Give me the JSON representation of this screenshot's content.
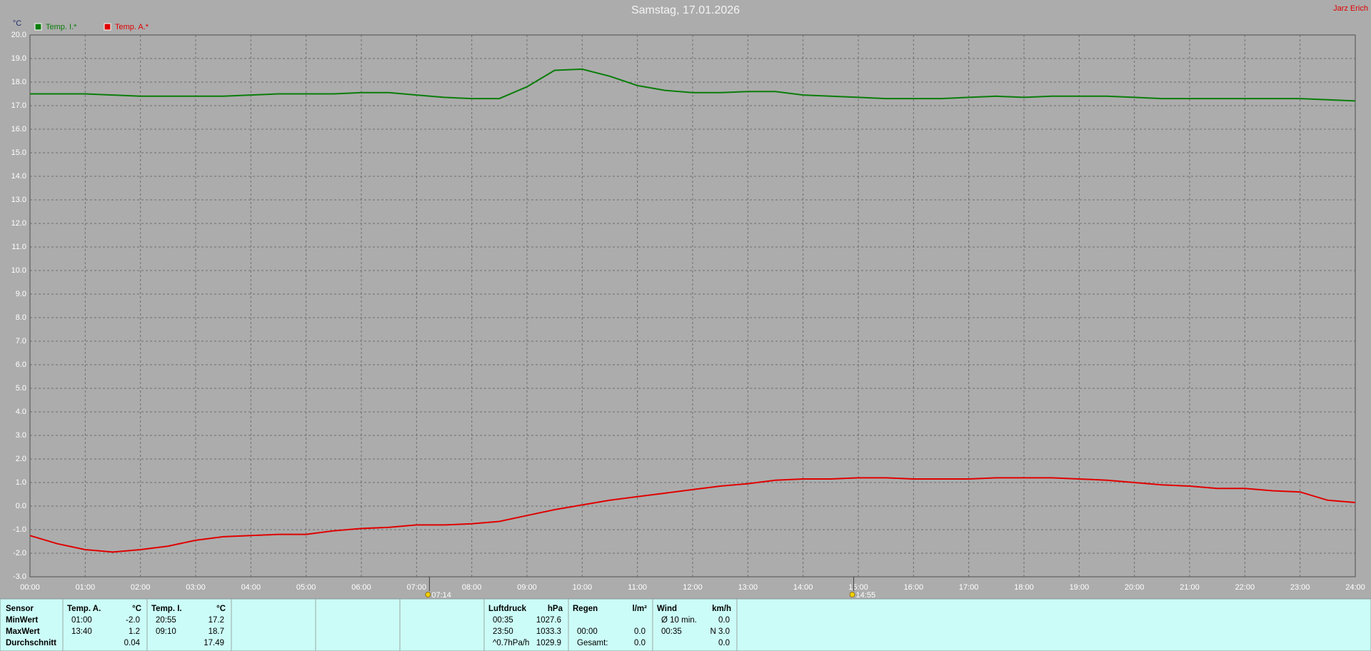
{
  "chart_data": {
    "type": "line",
    "title": "Samstag, 17.01.2026",
    "author": "Jarz Erich",
    "y_label": "°C",
    "x": [
      0,
      0.5,
      1,
      1.5,
      2,
      2.5,
      3,
      3.5,
      4,
      4.5,
      5,
      5.5,
      6,
      6.5,
      7,
      7.5,
      8,
      8.5,
      9,
      9.5,
      10,
      10.5,
      11,
      11.5,
      12,
      12.5,
      13,
      13.5,
      14,
      14.5,
      15,
      15.5,
      16,
      16.5,
      17,
      17.5,
      18,
      18.5,
      19,
      19.5,
      20,
      20.5,
      21,
      21.5,
      22,
      22.5,
      23,
      23.5,
      24
    ],
    "series": [
      {
        "name": "Temp. I.*",
        "color": "#0a7d0a",
        "values": [
          17.5,
          17.5,
          17.5,
          17.45,
          17.4,
          17.4,
          17.4,
          17.4,
          17.45,
          17.5,
          17.5,
          17.5,
          17.55,
          17.55,
          17.45,
          17.35,
          17.3,
          17.3,
          17.8,
          18.5,
          18.55,
          18.25,
          17.85,
          17.65,
          17.55,
          17.55,
          17.6,
          17.6,
          17.45,
          17.4,
          17.35,
          17.3,
          17.3,
          17.3,
          17.35,
          17.4,
          17.35,
          17.4,
          17.4,
          17.4,
          17.35,
          17.3,
          17.3,
          17.3,
          17.3,
          17.3,
          17.3,
          17.25,
          17.2
        ]
      },
      {
        "name": "Temp. A.*",
        "color": "#e00000",
        "values": [
          -1.25,
          -1.6,
          -1.85,
          -1.95,
          -1.85,
          -1.7,
          -1.45,
          -1.3,
          -1.25,
          -1.2,
          -1.2,
          -1.05,
          -0.95,
          -0.9,
          -0.8,
          -0.8,
          -0.75,
          -0.65,
          -0.4,
          -0.15,
          0.05,
          0.25,
          0.4,
          0.55,
          0.7,
          0.85,
          0.95,
          1.1,
          1.15,
          1.15,
          1.2,
          1.2,
          1.15,
          1.15,
          1.15,
          1.2,
          1.2,
          1.2,
          1.15,
          1.1,
          1.0,
          0.9,
          0.85,
          0.75,
          0.75,
          0.65,
          0.6,
          0.25,
          0.15
        ]
      }
    ],
    "xlim": [
      0,
      24
    ],
    "xticks": [
      {
        "value": 0,
        "label": "00:00"
      },
      {
        "value": 1,
        "label": "01:00"
      },
      {
        "value": 2,
        "label": "02:00"
      },
      {
        "value": 3,
        "label": "03:00"
      },
      {
        "value": 4,
        "label": "04:00"
      },
      {
        "value": 5,
        "label": "05:00"
      },
      {
        "value": 6,
        "label": "06:00"
      },
      {
        "value": 7,
        "label": "07:00"
      },
      {
        "value": 8,
        "label": "08:00"
      },
      {
        "value": 9,
        "label": "09:00"
      },
      {
        "value": 10,
        "label": "10:00"
      },
      {
        "value": 11,
        "label": "11:00"
      },
      {
        "value": 12,
        "label": "12:00"
      },
      {
        "value": 13,
        "label": "13:00"
      },
      {
        "value": 14,
        "label": "14:00"
      },
      {
        "value": 15,
        "label": "15:00"
      },
      {
        "value": 16,
        "label": "16:00"
      },
      {
        "value": 17,
        "label": "17:00"
      },
      {
        "value": 18,
        "label": "18:00"
      },
      {
        "value": 19,
        "label": "19:00"
      },
      {
        "value": 20,
        "label": "20:00"
      },
      {
        "value": 21,
        "label": "21:00"
      },
      {
        "value": 22,
        "label": "22:00"
      },
      {
        "value": 23,
        "label": "23:00"
      },
      {
        "value": 24,
        "label": "24:00"
      }
    ],
    "ylim": [
      -3,
      20
    ],
    "yticks": [
      {
        "value": -3,
        "label": "-3.0"
      },
      {
        "value": -2,
        "label": "-2.0"
      },
      {
        "value": -1,
        "label": "-1.0"
      },
      {
        "value": 0,
        "label": "0.0"
      },
      {
        "value": 1,
        "label": "1.0"
      },
      {
        "value": 2,
        "label": "2.0"
      },
      {
        "value": 3,
        "label": "3.0"
      },
      {
        "value": 4,
        "label": "4.0"
      },
      {
        "value": 5,
        "label": "5.0"
      },
      {
        "value": 6,
        "label": "6.0"
      },
      {
        "value": 7,
        "label": "7.0"
      },
      {
        "value": 8,
        "label": "8.0"
      },
      {
        "value": 9,
        "label": "9.0"
      },
      {
        "value": 10,
        "label": "10.0"
      },
      {
        "value": 11,
        "label": "11.0"
      },
      {
        "value": 12,
        "label": "12.0"
      },
      {
        "value": 13,
        "label": "13.0"
      },
      {
        "value": 14,
        "label": "14.0"
      },
      {
        "value": 15,
        "label": "15.0"
      },
      {
        "value": 16,
        "label": "16.0"
      },
      {
        "value": 17,
        "label": "17.0"
      },
      {
        "value": 18,
        "label": "18.0"
      },
      {
        "value": 19,
        "label": "19.0"
      },
      {
        "value": 20,
        "label": "20.0"
      }
    ],
    "grid": true,
    "sun_markers": [
      {
        "value": 7.2333,
        "label": "07:14"
      },
      {
        "value": 14.9167,
        "label": "14:55"
      }
    ]
  },
  "summary": {
    "row_labels": [
      "Sensor",
      "MinWert",
      "MaxWert",
      "Durchschnitt"
    ],
    "panels": [
      {
        "header": "Temp. A.",
        "unit": "°C",
        "rows": [
          [
            "01:00",
            "-2.0"
          ],
          [
            "13:40",
            "1.2"
          ],
          [
            null,
            "0.04"
          ]
        ]
      },
      {
        "header": "Temp. I.",
        "unit": "°C",
        "rows": [
          [
            "20:55",
            "17.2"
          ],
          [
            "09:10",
            "18.7"
          ],
          [
            null,
            "17.49"
          ]
        ]
      },
      {
        "header": "Luftdruck",
        "unit": "hPa",
        "rows": [
          [
            "00:35",
            "1027.6"
          ],
          [
            "23:50",
            "1033.3"
          ],
          [
            "^0.7hPa/h",
            "1029.9"
          ]
        ]
      },
      {
        "header": "Regen",
        "unit": "l/m²",
        "rows": [
          [
            null,
            null
          ],
          [
            "00:00",
            "0.0"
          ],
          [
            "Gesamt:",
            "0.0"
          ]
        ]
      },
      {
        "header": "Wind",
        "unit": "km/h",
        "rows": [
          [
            "Ø 10 min.",
            "0.0"
          ],
          [
            "00:35",
            "N 3.0"
          ],
          [
            null,
            "0.0"
          ]
        ]
      }
    ]
  }
}
